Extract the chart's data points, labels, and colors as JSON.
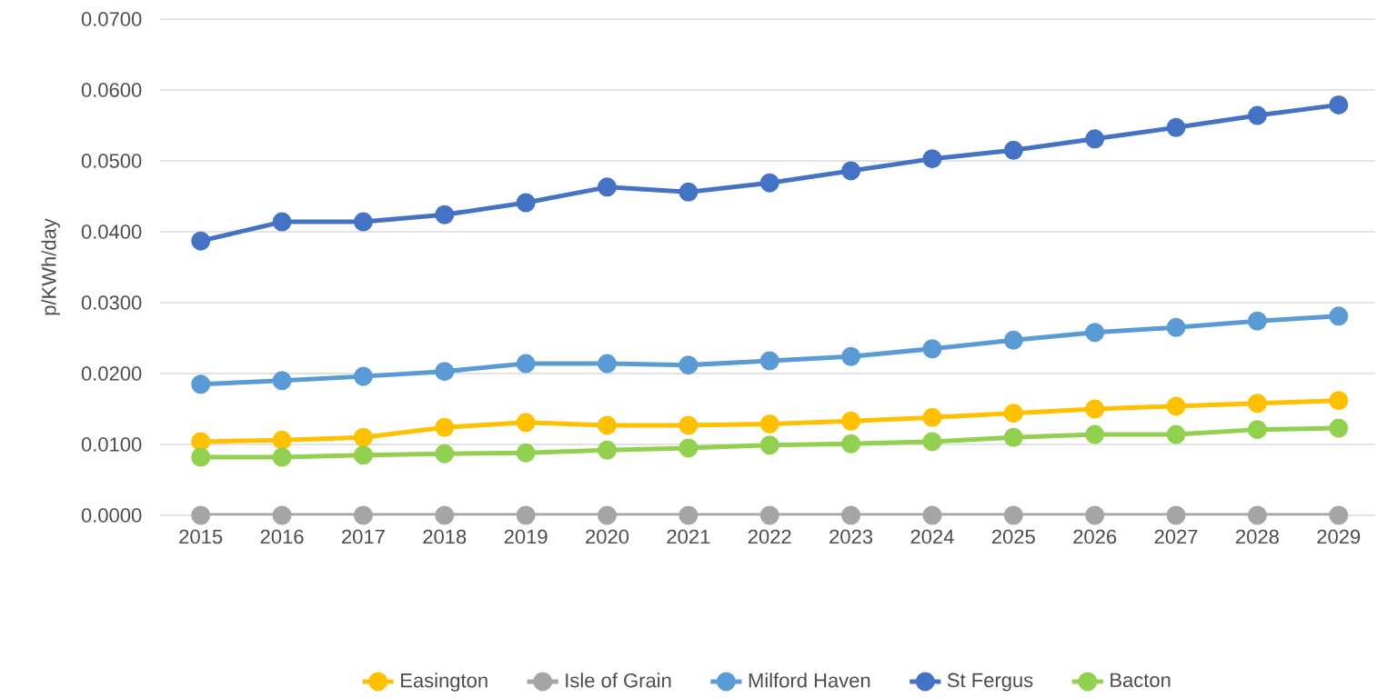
{
  "chart_data": {
    "type": "line",
    "ylabel": "p/KWh/day",
    "categories": [
      "2015",
      "2016",
      "2017",
      "2018",
      "2019",
      "2020",
      "2021",
      "2022",
      "2023",
      "2024",
      "2025",
      "2026",
      "2027",
      "2028",
      "2029"
    ],
    "series": [
      {
        "name": "Easington",
        "color": "#ffc000",
        "values": [
          0.0104,
          0.0106,
          0.011,
          0.0124,
          0.0131,
          0.0127,
          0.0127,
          0.0129,
          0.0133,
          0.0138,
          0.0144,
          0.015,
          0.0154,
          0.0158,
          0.0162
        ]
      },
      {
        "name": "Isle of Grain",
        "color": "#a5a5a5",
        "values": [
          0,
          0,
          0,
          0,
          0,
          0,
          0,
          0,
          0,
          0,
          0,
          0,
          0,
          0,
          0
        ]
      },
      {
        "name": "Milford Haven",
        "color": "#5b9bd5",
        "values": [
          0.0185,
          0.019,
          0.0196,
          0.0203,
          0.0214,
          0.0214,
          0.0212,
          0.0218,
          0.0224,
          0.0235,
          0.0247,
          0.0258,
          0.0265,
          0.0274,
          0.0281
        ]
      },
      {
        "name": "St Fergus",
        "color": "#4472c4",
        "values": [
          0.0387,
          0.0414,
          0.0414,
          0.0424,
          0.0441,
          0.0463,
          0.0456,
          0.0469,
          0.0486,
          0.0503,
          0.0515,
          0.0531,
          0.0547,
          0.0564,
          0.0579
        ]
      },
      {
        "name": "Bacton",
        "color": "#92d050",
        "values": [
          0.0082,
          0.0082,
          0.0085,
          0.0087,
          0.0088,
          0.0092,
          0.0095,
          0.0099,
          0.0101,
          0.0104,
          0.011,
          0.0114,
          0.0114,
          0.0121,
          0.0123
        ]
      }
    ],
    "ylim": [
      0,
      0.07
    ],
    "yticks": [
      {
        "value": 0,
        "label": "0.0000"
      },
      {
        "value": 0.01,
        "label": "0.0100"
      },
      {
        "value": 0.02,
        "label": "0.0200"
      },
      {
        "value": 0.03,
        "label": "0.0300"
      },
      {
        "value": 0.04,
        "label": "0.0400"
      },
      {
        "value": 0.05,
        "label": "0.0500"
      },
      {
        "value": 0.06,
        "label": "0.0600"
      },
      {
        "value": 0.07,
        "label": "0.0700"
      }
    ],
    "grid": "y",
    "legend": "bottom",
    "marker": "circle",
    "line_style": "solid"
  }
}
